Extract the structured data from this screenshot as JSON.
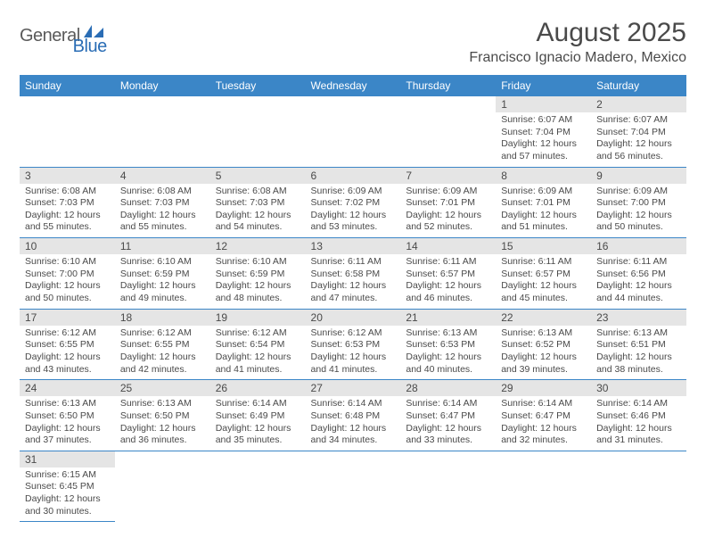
{
  "logo": {
    "text1": "General",
    "text2": "Blue"
  },
  "title": "August 2025",
  "location": "Francisco Ignacio Madero, Mexico",
  "colors": {
    "header_bg": "#3b86c7",
    "header_text": "#ffffff",
    "daynum_bg": "#e5e5e5",
    "text": "#4a4a4a",
    "border": "#3b86c7"
  },
  "weekdays": [
    "Sunday",
    "Monday",
    "Tuesday",
    "Wednesday",
    "Thursday",
    "Friday",
    "Saturday"
  ],
  "weeks": [
    [
      null,
      null,
      null,
      null,
      null,
      {
        "n": "1",
        "sunrise": "6:07 AM",
        "sunset": "7:04 PM",
        "dl1": "Daylight: 12 hours",
        "dl2": "and 57 minutes."
      },
      {
        "n": "2",
        "sunrise": "6:07 AM",
        "sunset": "7:04 PM",
        "dl1": "Daylight: 12 hours",
        "dl2": "and 56 minutes."
      }
    ],
    [
      {
        "n": "3",
        "sunrise": "6:08 AM",
        "sunset": "7:03 PM",
        "dl1": "Daylight: 12 hours",
        "dl2": "and 55 minutes."
      },
      {
        "n": "4",
        "sunrise": "6:08 AM",
        "sunset": "7:03 PM",
        "dl1": "Daylight: 12 hours",
        "dl2": "and 55 minutes."
      },
      {
        "n": "5",
        "sunrise": "6:08 AM",
        "sunset": "7:03 PM",
        "dl1": "Daylight: 12 hours",
        "dl2": "and 54 minutes."
      },
      {
        "n": "6",
        "sunrise": "6:09 AM",
        "sunset": "7:02 PM",
        "dl1": "Daylight: 12 hours",
        "dl2": "and 53 minutes."
      },
      {
        "n": "7",
        "sunrise": "6:09 AM",
        "sunset": "7:01 PM",
        "dl1": "Daylight: 12 hours",
        "dl2": "and 52 minutes."
      },
      {
        "n": "8",
        "sunrise": "6:09 AM",
        "sunset": "7:01 PM",
        "dl1": "Daylight: 12 hours",
        "dl2": "and 51 minutes."
      },
      {
        "n": "9",
        "sunrise": "6:09 AM",
        "sunset": "7:00 PM",
        "dl1": "Daylight: 12 hours",
        "dl2": "and 50 minutes."
      }
    ],
    [
      {
        "n": "10",
        "sunrise": "6:10 AM",
        "sunset": "7:00 PM",
        "dl1": "Daylight: 12 hours",
        "dl2": "and 50 minutes."
      },
      {
        "n": "11",
        "sunrise": "6:10 AM",
        "sunset": "6:59 PM",
        "dl1": "Daylight: 12 hours",
        "dl2": "and 49 minutes."
      },
      {
        "n": "12",
        "sunrise": "6:10 AM",
        "sunset": "6:59 PM",
        "dl1": "Daylight: 12 hours",
        "dl2": "and 48 minutes."
      },
      {
        "n": "13",
        "sunrise": "6:11 AM",
        "sunset": "6:58 PM",
        "dl1": "Daylight: 12 hours",
        "dl2": "and 47 minutes."
      },
      {
        "n": "14",
        "sunrise": "6:11 AM",
        "sunset": "6:57 PM",
        "dl1": "Daylight: 12 hours",
        "dl2": "and 46 minutes."
      },
      {
        "n": "15",
        "sunrise": "6:11 AM",
        "sunset": "6:57 PM",
        "dl1": "Daylight: 12 hours",
        "dl2": "and 45 minutes."
      },
      {
        "n": "16",
        "sunrise": "6:11 AM",
        "sunset": "6:56 PM",
        "dl1": "Daylight: 12 hours",
        "dl2": "and 44 minutes."
      }
    ],
    [
      {
        "n": "17",
        "sunrise": "6:12 AM",
        "sunset": "6:55 PM",
        "dl1": "Daylight: 12 hours",
        "dl2": "and 43 minutes."
      },
      {
        "n": "18",
        "sunrise": "6:12 AM",
        "sunset": "6:55 PM",
        "dl1": "Daylight: 12 hours",
        "dl2": "and 42 minutes."
      },
      {
        "n": "19",
        "sunrise": "6:12 AM",
        "sunset": "6:54 PM",
        "dl1": "Daylight: 12 hours",
        "dl2": "and 41 minutes."
      },
      {
        "n": "20",
        "sunrise": "6:12 AM",
        "sunset": "6:53 PM",
        "dl1": "Daylight: 12 hours",
        "dl2": "and 41 minutes."
      },
      {
        "n": "21",
        "sunrise": "6:13 AM",
        "sunset": "6:53 PM",
        "dl1": "Daylight: 12 hours",
        "dl2": "and 40 minutes."
      },
      {
        "n": "22",
        "sunrise": "6:13 AM",
        "sunset": "6:52 PM",
        "dl1": "Daylight: 12 hours",
        "dl2": "and 39 minutes."
      },
      {
        "n": "23",
        "sunrise": "6:13 AM",
        "sunset": "6:51 PM",
        "dl1": "Daylight: 12 hours",
        "dl2": "and 38 minutes."
      }
    ],
    [
      {
        "n": "24",
        "sunrise": "6:13 AM",
        "sunset": "6:50 PM",
        "dl1": "Daylight: 12 hours",
        "dl2": "and 37 minutes."
      },
      {
        "n": "25",
        "sunrise": "6:13 AM",
        "sunset": "6:50 PM",
        "dl1": "Daylight: 12 hours",
        "dl2": "and 36 minutes."
      },
      {
        "n": "26",
        "sunrise": "6:14 AM",
        "sunset": "6:49 PM",
        "dl1": "Daylight: 12 hours",
        "dl2": "and 35 minutes."
      },
      {
        "n": "27",
        "sunrise": "6:14 AM",
        "sunset": "6:48 PM",
        "dl1": "Daylight: 12 hours",
        "dl2": "and 34 minutes."
      },
      {
        "n": "28",
        "sunrise": "6:14 AM",
        "sunset": "6:47 PM",
        "dl1": "Daylight: 12 hours",
        "dl2": "and 33 minutes."
      },
      {
        "n": "29",
        "sunrise": "6:14 AM",
        "sunset": "6:47 PM",
        "dl1": "Daylight: 12 hours",
        "dl2": "and 32 minutes."
      },
      {
        "n": "30",
        "sunrise": "6:14 AM",
        "sunset": "6:46 PM",
        "dl1": "Daylight: 12 hours",
        "dl2": "and 31 minutes."
      }
    ],
    [
      {
        "n": "31",
        "sunrise": "6:15 AM",
        "sunset": "6:45 PM",
        "dl1": "Daylight: 12 hours",
        "dl2": "and 30 minutes."
      },
      null,
      null,
      null,
      null,
      null,
      null
    ]
  ]
}
